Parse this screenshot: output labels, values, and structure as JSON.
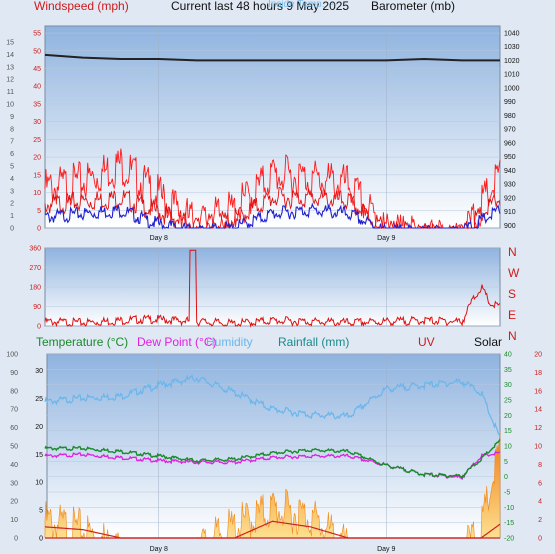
{
  "header": {
    "windspeed_label": "Windspeed (mph)",
    "title": "Current last 48 hours 9 May 2025",
    "overlay": "Inside Temp. ---",
    "barometer_label": "Barometer (mb)"
  },
  "legend2": {
    "temperature": "Temperature (°C)",
    "dewpoint": "Dew Point (°C)",
    "humidity": "Humidity",
    "rainfall": "Rainfall (mm)",
    "uv": "UV",
    "solar": "Solar"
  },
  "colors": {
    "wind": "#e01010",
    "gust": "#ff1a1a",
    "avg_wind": "#2020d0",
    "barometer": "#222222",
    "temperature": "#1a8a2a",
    "dewpoint": "#e020e0",
    "humidity": "#6ab6ec",
    "rain": "#f08a1a",
    "uv": "#cc2222",
    "panel_bg_top": "#9fbce0",
    "panel_bg_bottom": "#ffffff"
  },
  "x_labels": [
    "Day 8",
    "Day 9"
  ],
  "chart_data": [
    {
      "type": "line",
      "title": "Windspeed (mph) / Barometer (mb)",
      "x_hours": [
        0,
        4,
        8,
        12,
        16,
        20,
        24,
        28,
        32,
        36,
        40,
        44,
        48
      ],
      "series": [
        {
          "name": "Wind gust (mph)",
          "values": [
            14,
            16,
            21,
            12,
            4,
            8,
            18,
            17,
            15,
            2,
            0,
            0,
            18
          ]
        },
        {
          "name": "Avg wind (mph)",
          "values": [
            8,
            9,
            10,
            6,
            2,
            4,
            10,
            10,
            9,
            1,
            0,
            0,
            10
          ]
        },
        {
          "name": "Low wind (mph)",
          "values": [
            4,
            5,
            6,
            2,
            0,
            1,
            5,
            6,
            5,
            0,
            0,
            0,
            6
          ]
        },
        {
          "name": "Barometer (mb)",
          "values": [
            1024,
            1022,
            1021,
            1021,
            1020,
            1020,
            1020,
            1020,
            1020,
            1020,
            1021,
            1020,
            1020
          ]
        }
      ],
      "y_left": {
        "ticks": [
          0,
          5,
          10,
          15,
          20,
          25,
          30,
          35,
          40,
          45,
          50,
          55
        ],
        "ylim": [
          0,
          57
        ]
      },
      "y_left_outer": {
        "ticks": [
          0,
          1,
          2,
          3,
          4,
          5,
          6,
          7,
          8,
          9,
          10,
          11,
          12,
          13,
          14,
          15
        ]
      },
      "y_right": {
        "ticks": [
          900,
          910,
          920,
          930,
          940,
          950,
          960,
          970,
          980,
          990,
          1000,
          1010,
          1020,
          1030,
          1040
        ],
        "ylim": [
          898,
          1045
        ]
      }
    },
    {
      "type": "line",
      "title": "Wind direction",
      "x_hours": [
        0,
        4,
        8,
        10,
        12,
        16,
        20,
        24,
        28,
        32,
        36,
        40,
        44,
        45,
        46,
        47,
        48
      ],
      "series": [
        {
          "name": "Wind direction",
          "values": [
            30,
            25,
            35,
            40,
            40,
            30,
            20,
            35,
            30,
            25,
            30,
            35,
            30,
            120,
            190,
            110,
            100
          ]
        }
      ],
      "y_left": {
        "ticks": [
          0,
          90,
          180,
          270,
          360
        ],
        "ylim": [
          0,
          360
        ]
      },
      "compass": [
        "N",
        "W",
        "S",
        "E",
        "N"
      ]
    },
    {
      "type": "line",
      "title": "Temperature / Humidity / Rainfall / UV / Solar",
      "x_hours": [
        0,
        4,
        8,
        12,
        16,
        20,
        24,
        28,
        32,
        36,
        40,
        44,
        46,
        48
      ],
      "series": [
        {
          "name": "Temperature (°C)",
          "values": [
            9.5,
            9.5,
            8.5,
            7,
            5.5,
            6,
            8,
            9,
            8.5,
            4,
            1,
            0.5,
            6,
            12
          ]
        },
        {
          "name": "Dew Point (°C)",
          "values": [
            7,
            7.5,
            6.5,
            5.5,
            5,
            5,
            6.5,
            7,
            7,
            4,
            1,
            0,
            7,
            8
          ]
        },
        {
          "name": "Humidity",
          "values": [
            75,
            77,
            78,
            84,
            88,
            80,
            71,
            68,
            67,
            82,
            84,
            86,
            80,
            55
          ]
        },
        {
          "name": "Rainfall (mm)",
          "values": [
            2,
            1.5,
            0,
            0,
            0,
            0,
            3,
            2,
            0,
            0,
            0,
            0,
            0,
            0
          ]
        },
        {
          "name": "UV",
          "values": [
            0,
            0,
            0,
            0,
            0,
            0,
            0,
            0,
            0,
            0,
            0,
            0,
            0,
            1.5
          ]
        },
        {
          "name": "Solar",
          "values": [
            150,
            100,
            0,
            0,
            0,
            120,
            220,
            180,
            0,
            0,
            0,
            0,
            100,
            550
          ]
        }
      ],
      "y_left_outer": {
        "ticks": [
          0,
          10,
          20,
          30,
          40,
          50,
          60,
          70,
          80,
          90,
          100
        ],
        "label": "Humidity %"
      },
      "y_left": {
        "ticks": [
          0,
          5,
          10,
          15,
          20,
          25,
          30
        ],
        "label": "Rainfall mm"
      },
      "y_right": {
        "ticks": [
          -20,
          -15,
          -10,
          -5,
          0,
          5,
          10,
          15,
          20,
          25,
          30,
          35,
          40
        ],
        "label": "°C"
      },
      "y_right_outer": {
        "ticks": [
          0,
          2,
          4,
          6,
          8,
          10,
          12,
          14,
          16,
          18,
          20
        ],
        "label": "UV"
      }
    }
  ]
}
